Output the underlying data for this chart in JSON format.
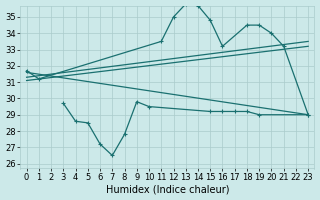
{
  "xlabel": "Humidex (Indice chaleur)",
  "x_values": [
    0,
    1,
    2,
    3,
    4,
    5,
    6,
    7,
    8,
    9,
    10,
    11,
    12,
    13,
    14,
    15,
    16,
    17,
    18,
    19,
    20,
    21,
    22,
    23
  ],
  "line_top": [
    31.7,
    31.2,
    null,
    null,
    null,
    null,
    null,
    null,
    null,
    null,
    null,
    33.5,
    35.0,
    35.8,
    35.7,
    34.8,
    33.2,
    null,
    34.5,
    34.5,
    34.0,
    33.2,
    null,
    29.0
  ],
  "line_bot": [
    null,
    null,
    null,
    29.7,
    28.6,
    28.5,
    27.2,
    26.5,
    27.8,
    29.8,
    29.5,
    null,
    null,
    null,
    null,
    29.2,
    29.2,
    29.2,
    29.2,
    29.0,
    null,
    null,
    null,
    29.0
  ],
  "trend1_x": [
    0,
    23
  ],
  "trend1_y": [
    31.3,
    33.5
  ],
  "trend2_x": [
    0,
    23
  ],
  "trend2_y": [
    31.1,
    33.2
  ],
  "decline_x": [
    0,
    23
  ],
  "decline_y": [
    31.6,
    29.0
  ],
  "bg_color": "#cce9e9",
  "grid_color": "#aacccc",
  "line_color": "#1a7070",
  "ylim_min": 25.7,
  "ylim_max": 35.7,
  "yticks": [
    26,
    27,
    28,
    29,
    30,
    31,
    32,
    33,
    34,
    35
  ],
  "xlim_min": -0.5,
  "xlim_max": 23.5,
  "tick_fontsize": 6,
  "label_fontsize": 7
}
